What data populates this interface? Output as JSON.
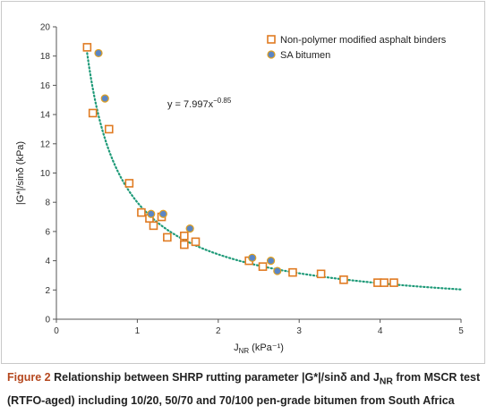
{
  "chart_data": {
    "type": "scatter",
    "title": "",
    "xlabel": "J_NR (kPa⁻¹)",
    "ylabel": "|G*|/sinδ (kPa)",
    "xlim": [
      0,
      5
    ],
    "ylim": [
      0,
      20
    ],
    "xticks": [
      0,
      1,
      2,
      3,
      4,
      5
    ],
    "yticks": [
      0,
      2,
      4,
      6,
      8,
      10,
      12,
      14,
      16,
      18,
      20
    ],
    "legend_position": "top-right",
    "grid": false,
    "series": [
      {
        "name": "Non-polymer modified asphalt binders",
        "marker": "square",
        "color": "#e07b22",
        "points": [
          [
            0.38,
            18.6
          ],
          [
            0.45,
            14.1
          ],
          [
            0.65,
            13.0
          ],
          [
            0.9,
            9.3
          ],
          [
            1.05,
            7.3
          ],
          [
            1.15,
            6.9
          ],
          [
            1.2,
            6.4
          ],
          [
            1.3,
            7.0
          ],
          [
            1.37,
            5.6
          ],
          [
            1.58,
            5.1
          ],
          [
            1.58,
            5.7
          ],
          [
            1.72,
            5.3
          ],
          [
            2.38,
            4.0
          ],
          [
            2.55,
            3.6
          ],
          [
            2.92,
            3.2
          ],
          [
            3.27,
            3.1
          ],
          [
            3.55,
            2.7
          ],
          [
            3.97,
            2.5
          ],
          [
            4.05,
            2.5
          ],
          [
            4.17,
            2.5
          ]
        ]
      },
      {
        "name": "SA bitumen",
        "marker": "circle",
        "color": "#5b86c5",
        "points": [
          [
            0.52,
            18.2
          ],
          [
            0.6,
            15.1
          ],
          [
            1.17,
            7.2
          ],
          [
            1.32,
            7.2
          ],
          [
            1.65,
            6.2
          ],
          [
            2.42,
            4.2
          ],
          [
            2.65,
            4.0
          ],
          [
            2.73,
            3.3
          ]
        ]
      }
    ],
    "trendline": {
      "equation_label": "y = 7.997x",
      "exponent_label": "−0.85",
      "coefficient": 7.997,
      "exponent": -0.85,
      "x_range": [
        0.38,
        5.0
      ],
      "color": "#1e9a78",
      "style": "dotted"
    }
  },
  "caption": {
    "label": "Figure 2",
    "text": "Relationship between SHRP rutting parameter |G*|/sinδ and J",
    "sub": "NR",
    "text2": " from MSCR test (RTFO-aged) including 10/20, 50/70 and 70/100 pen-grade bitumen from South Africa"
  }
}
